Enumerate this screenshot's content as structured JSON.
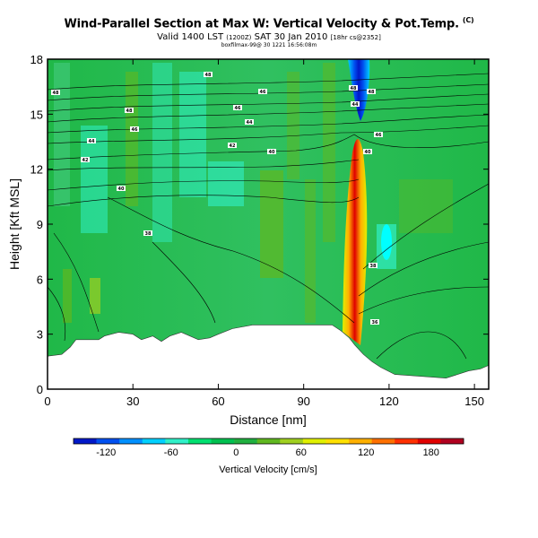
{
  "header": {
    "title": "Wind-Parallel Section at Max W: Vertical Velocity & Pot.Temp.",
    "copyright": "(C)",
    "valid_text": "Valid 1400 LST",
    "valid_detail": "(1200Z)",
    "valid_date": "SAT 30 Jan 2010",
    "valid_extra": "[18hr cs@2352]",
    "run_text": "boxfilmax-99@ 30 1221 16:56:08m"
  },
  "chart_data": {
    "type": "heatmap",
    "title": "Wind-Parallel Section at Max W: Vertical Velocity & Pot.Temp.",
    "xlabel": "Distance [nm]",
    "ylabel": "Height [Kft MSL]",
    "xlim": [
      0,
      155
    ],
    "ylim": [
      0,
      18
    ],
    "xticks": [
      0,
      30,
      60,
      90,
      120,
      150
    ],
    "yticks": [
      0,
      3,
      6,
      9,
      12,
      15,
      18
    ],
    "colorbar": {
      "label": "Vertical Velocity [cm/s]",
      "ticks": [
        -120,
        -60,
        0,
        60,
        120,
        180
      ],
      "colors": [
        "#0018c8",
        "#0050f0",
        "#0090ff",
        "#00d0ff",
        "#30f0c8",
        "#00e070",
        "#00c050",
        "#20b040",
        "#60b820",
        "#a0d020",
        "#e0f000",
        "#ffe000",
        "#ffb000",
        "#ff7000",
        "#ff3000",
        "#e00000",
        "#b00020"
      ]
    },
    "contour_labels": [
      "48",
      "46",
      "44",
      "42",
      "40",
      "38",
      "36"
    ],
    "terrain_heights_kft": [
      [
        0,
        1.0
      ],
      [
        0,
        1.8
      ],
      [
        5,
        1.9
      ],
      [
        8,
        2.3
      ],
      [
        10,
        2.7
      ],
      [
        18,
        2.7
      ],
      [
        20,
        2.9
      ],
      [
        25,
        3.1
      ],
      [
        30,
        3.0
      ],
      [
        33,
        2.7
      ],
      [
        37,
        2.9
      ],
      [
        40,
        2.6
      ],
      [
        43,
        2.9
      ],
      [
        47,
        3.1
      ],
      [
        53,
        2.7
      ],
      [
        57,
        2.8
      ],
      [
        60,
        3.0
      ],
      [
        65,
        3.3
      ],
      [
        72,
        3.5
      ],
      [
        85,
        3.5
      ],
      [
        100,
        3.5
      ],
      [
        103,
        3.2
      ],
      [
        106,
        2.8
      ],
      [
        108,
        2.4
      ],
      [
        111,
        1.9
      ],
      [
        114,
        1.5
      ],
      [
        117,
        1.2
      ],
      [
        122,
        0.8
      ],
      [
        140,
        0.6
      ],
      [
        148,
        1.0
      ],
      [
        152,
        1.1
      ],
      [
        155,
        1.3
      ]
    ],
    "max_updraft": {
      "x": 108,
      "y_range": [
        5,
        13
      ],
      "value_cm_s": 190
    },
    "max_downdraft": {
      "x": 109,
      "y_range": [
        14,
        18
      ],
      "value_cm_s": -120
    }
  }
}
